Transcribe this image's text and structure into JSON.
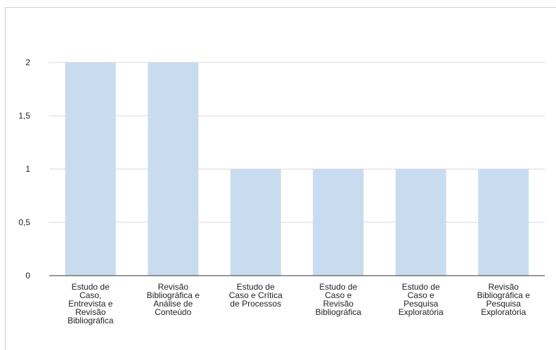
{
  "chart_data": {
    "type": "bar",
    "categories": [
      [
        "Estudo de",
        "Caso,",
        "Entrevista e",
        "Revisão",
        "Bibliográfica"
      ],
      [
        "Revisão",
        "Bibliográfica e",
        "Análise de",
        "Conteúdo"
      ],
      [
        "Estudo de",
        "Caso e Crítica",
        "de Processos"
      ],
      [
        "Estudo de",
        "Caso e",
        "Revisão",
        "Bibliográfica"
      ],
      [
        "Estudo de",
        "Caso e",
        "Pesquisa",
        "Exploratória"
      ],
      [
        "Revisão",
        "Bibliográfica e",
        "Pesquisa",
        "Exploratória"
      ]
    ],
    "values": [
      2,
      2,
      1,
      1,
      1,
      1
    ],
    "yticks": [
      "0",
      "0,5",
      "1",
      "1,5",
      "2"
    ],
    "ylim": [
      0,
      2
    ],
    "grid": true,
    "colors": {
      "bar": "#c9dcef",
      "grid": "#d9d9d9",
      "axis": "#333333"
    },
    "title": "",
    "xlabel": "",
    "ylabel": ""
  }
}
